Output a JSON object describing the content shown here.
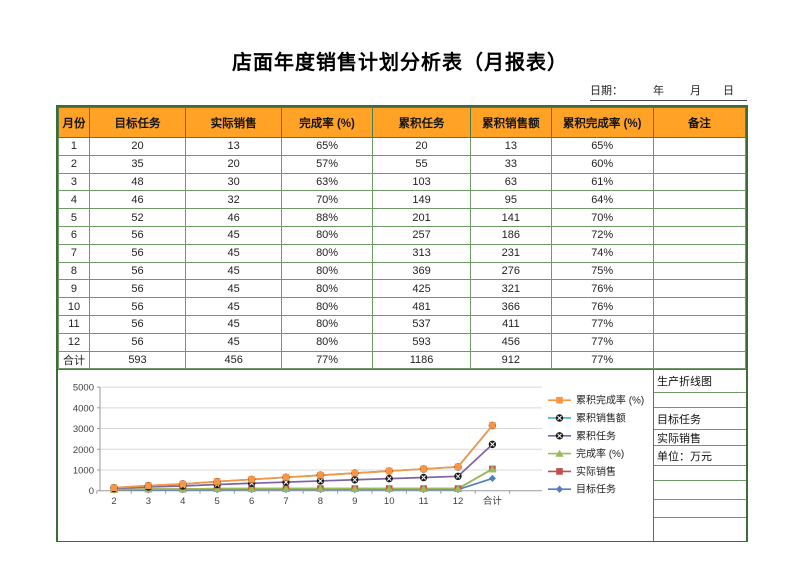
{
  "title": "店面年度销售计划分析表（月报表）",
  "date_line": {
    "label": "日期：",
    "year": "年",
    "month": "月",
    "day": "日"
  },
  "table": {
    "headers": [
      "月份",
      "目标任务",
      "实际销售",
      "完成率 (%)",
      "累积任务",
      "累积销售额",
      "累积完成率 (%)",
      "备注"
    ],
    "rows": [
      [
        "1",
        "20",
        "13",
        "65%",
        "20",
        "13",
        "65%",
        ""
      ],
      [
        "2",
        "35",
        "20",
        "57%",
        "55",
        "33",
        "60%",
        ""
      ],
      [
        "3",
        "48",
        "30",
        "63%",
        "103",
        "63",
        "61%",
        ""
      ],
      [
        "4",
        "46",
        "32",
        "70%",
        "149",
        "95",
        "64%",
        ""
      ],
      [
        "5",
        "52",
        "46",
        "88%",
        "201",
        "141",
        "70%",
        ""
      ],
      [
        "6",
        "56",
        "45",
        "80%",
        "257",
        "186",
        "72%",
        ""
      ],
      [
        "7",
        "56",
        "45",
        "80%",
        "313",
        "231",
        "74%",
        ""
      ],
      [
        "8",
        "56",
        "45",
        "80%",
        "369",
        "276",
        "75%",
        ""
      ],
      [
        "9",
        "56",
        "45",
        "80%",
        "425",
        "321",
        "76%",
        ""
      ],
      [
        "10",
        "56",
        "45",
        "80%",
        "481",
        "366",
        "76%",
        ""
      ],
      [
        "11",
        "56",
        "45",
        "80%",
        "537",
        "411",
        "77%",
        ""
      ],
      [
        "12",
        "56",
        "45",
        "80%",
        "593",
        "456",
        "77%",
        ""
      ],
      [
        "合计",
        "593",
        "456",
        "77%",
        "1186",
        "912",
        "77%",
        ""
      ]
    ]
  },
  "side_panel": {
    "rows": [
      "生产折线图",
      "",
      "目标任务",
      "实际销售",
      "单位：万元",
      "",
      "",
      "",
      ""
    ]
  },
  "colors": {
    "header_bg": "#FFA226",
    "border_outer": "#3e6b39",
    "border_inner": "#6f9a68",
    "gridline": "#d8d8d8",
    "axis": "#9a9a9a"
  },
  "chart_data": {
    "type": "line",
    "stacked": true,
    "title": "",
    "xlabel": "",
    "ylabel": "",
    "categories": [
      "2",
      "3",
      "4",
      "5",
      "6",
      "7",
      "8",
      "9",
      "10",
      "11",
      "12",
      "合计"
    ],
    "series": [
      {
        "name": "目标任务",
        "color": "#4F81BD",
        "marker": "diamond",
        "values": [
          35,
          48,
          46,
          52,
          56,
          56,
          56,
          56,
          56,
          56,
          56,
          593
        ]
      },
      {
        "name": "实际销售",
        "color": "#C0504D",
        "marker": "square",
        "values": [
          20,
          30,
          32,
          46,
          45,
          45,
          45,
          45,
          45,
          45,
          45,
          456
        ]
      },
      {
        "name": "完成率 (%)",
        "color": "#9BBB59",
        "marker": "triangle",
        "values": [
          0.57,
          0.63,
          0.7,
          0.88,
          0.8,
          0.8,
          0.8,
          0.8,
          0.8,
          0.8,
          0.8,
          0.77
        ]
      },
      {
        "name": "累积任务",
        "color": "#8064A2",
        "marker": "circle-x",
        "values": [
          55,
          103,
          149,
          201,
          257,
          313,
          369,
          425,
          481,
          537,
          593,
          1186
        ]
      },
      {
        "name": "累积销售额",
        "color": "#4BACC6",
        "marker": "circle-x",
        "values": [
          33,
          63,
          95,
          141,
          186,
          231,
          276,
          321,
          366,
          411,
          456,
          912
        ]
      },
      {
        "name": "累积完成率 (%)",
        "color": "#F79646",
        "marker": "square",
        "values": [
          0.6,
          0.61,
          0.64,
          0.7,
          0.72,
          0.74,
          0.75,
          0.76,
          0.76,
          0.77,
          0.77,
          0.77
        ]
      }
    ],
    "ylim": [
      0,
      5000
    ],
    "yticks": [
      0,
      1000,
      2000,
      3000,
      4000,
      5000
    ],
    "grid": true,
    "legend_position": "right",
    "legend_order": "reversed"
  }
}
